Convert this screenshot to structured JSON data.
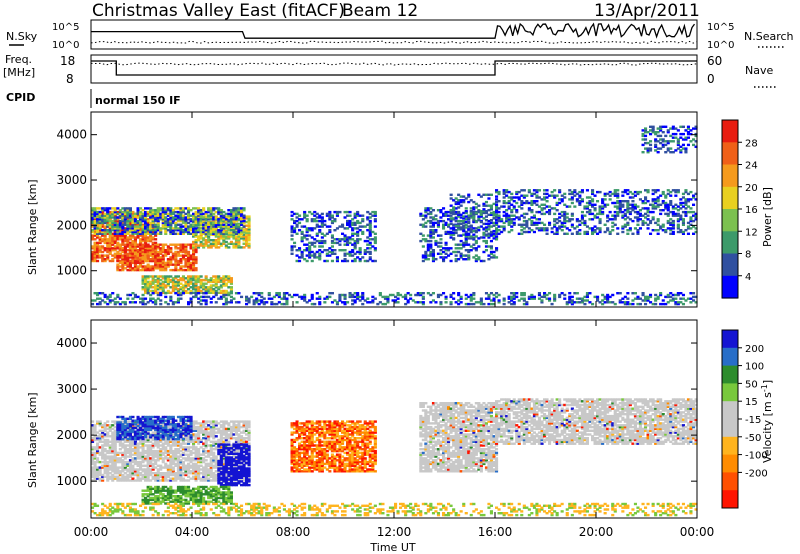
{
  "header": {
    "title": "Christmas Valley East (fitACF)",
    "beam": "Beam 12",
    "date": "13/Apr/2011"
  },
  "top_panels": {
    "nsky_label": "N.Sky",
    "nsky_ticks": [
      "10^5",
      "10^0"
    ],
    "nsearch_label": "N.Search",
    "nsearch_ticks": [
      "10^5",
      "10^0"
    ],
    "freq_label": "Freq.",
    "freq_unit": "[MHz]",
    "freq_ticks": [
      "18",
      "8"
    ],
    "nave_label": "Nave",
    "nave_ticks": [
      "60",
      "0"
    ],
    "cpid_label": "CPID",
    "cpid_value": "normal 150 IF"
  },
  "colors": {
    "power_scale": [
      "#0000ff",
      "#3050a0",
      "#3c9a6a",
      "#7cc050",
      "#e8d020",
      "#f59a1c",
      "#f06018",
      "#e81c10"
    ],
    "velocity_scale": [
      "#1414d2",
      "#286ec8",
      "#2d8c2d",
      "#78c83c",
      "#c8c8c8",
      "#c8c8c8",
      "#ffb41e",
      "#ff8c00",
      "#ff5000",
      "#ff1400"
    ]
  },
  "chart_data": [
    {
      "type": "heatmap",
      "name": "power",
      "ylabel": "Slant Range [km]",
      "xlabel": "",
      "y_ticks": [
        "4000",
        "3000",
        "2000",
        "1000"
      ],
      "y_tick_values": [
        4000,
        3000,
        2000,
        1000
      ],
      "ylim": [
        200,
        4500
      ],
      "xlim": [
        0,
        24
      ],
      "colorbar": {
        "label": "Power [dB]",
        "ticks": [
          "28",
          "24",
          "20",
          "16",
          "12",
          "8",
          "4"
        ],
        "range": [
          0,
          32
        ]
      },
      "regions": [
        {
          "t0": 0.0,
          "t1": 2.6,
          "r0": 1200,
          "r1": 2300,
          "level": "high"
        },
        {
          "t0": 1.0,
          "t1": 4.2,
          "r0": 1000,
          "r1": 1600,
          "level": "high"
        },
        {
          "t0": 4.0,
          "t1": 6.2,
          "r0": 1500,
          "r1": 2200,
          "level": "medium"
        },
        {
          "t0": 2.0,
          "t1": 5.5,
          "r0": 500,
          "r1": 900,
          "level": "medium"
        },
        {
          "t0": 0.0,
          "t1": 6.0,
          "r0": 1800,
          "r1": 2400,
          "level": "mixed"
        },
        {
          "t0": 7.9,
          "t1": 11.2,
          "r0": 1200,
          "r1": 2300,
          "level": "low"
        },
        {
          "t0": 13.0,
          "t1": 16.0,
          "r0": 1200,
          "r1": 2400,
          "level": "low"
        },
        {
          "t0": 14.2,
          "t1": 16.0,
          "r0": 1700,
          "r1": 2700,
          "level": "low"
        },
        {
          "t0": 16.0,
          "t1": 24.0,
          "r0": 1800,
          "r1": 2800,
          "level": "low"
        },
        {
          "t0": 21.8,
          "t1": 24.0,
          "r0": 3600,
          "r1": 4200,
          "level": "low"
        },
        {
          "t0": 0.0,
          "t1": 24.0,
          "r0": 250,
          "r1": 500,
          "level": "low"
        }
      ]
    },
    {
      "type": "heatmap",
      "name": "velocity",
      "ylabel": "Slant Range [km]",
      "xlabel": "Time UT",
      "x_ticks": [
        "00:00",
        "04:00",
        "08:00",
        "12:00",
        "16:00",
        "20:00",
        "00:00"
      ],
      "x_tick_values": [
        0,
        4,
        8,
        12,
        16,
        20,
        24
      ],
      "y_ticks": [
        "4000",
        "3000",
        "2000",
        "1000"
      ],
      "y_tick_values": [
        4000,
        3000,
        2000,
        1000
      ],
      "ylim": [
        200,
        4500
      ],
      "xlim": [
        0,
        24
      ],
      "colorbar": {
        "label": "Velocity [m s^-1]",
        "ticks": [
          "200",
          "100",
          "50",
          "15",
          "-15",
          "-50",
          "-100",
          "-200"
        ]
      },
      "regions": [
        {
          "t0": 0.0,
          "t1": 6.2,
          "r0": 1000,
          "r1": 2300,
          "class": "near-zero"
        },
        {
          "t0": 1.0,
          "t1": 4.0,
          "r0": 1900,
          "r1": 2400,
          "class": "positive"
        },
        {
          "t0": 5.0,
          "t1": 6.2,
          "r0": 900,
          "r1": 1800,
          "class": "strong-positive"
        },
        {
          "t0": 2.0,
          "t1": 5.5,
          "r0": 500,
          "r1": 900,
          "class": "positive-green"
        },
        {
          "t0": 7.9,
          "t1": 11.2,
          "r0": 1200,
          "r1": 2300,
          "class": "negative"
        },
        {
          "t0": 13.0,
          "t1": 16.0,
          "r0": 1200,
          "r1": 2700,
          "class": "near-zero"
        },
        {
          "t0": 16.0,
          "t1": 24.0,
          "r0": 1800,
          "r1": 2800,
          "class": "near-zero"
        },
        {
          "t0": 0.0,
          "t1": 24.0,
          "r0": 250,
          "r1": 500,
          "class": "weak-negative"
        }
      ]
    }
  ]
}
